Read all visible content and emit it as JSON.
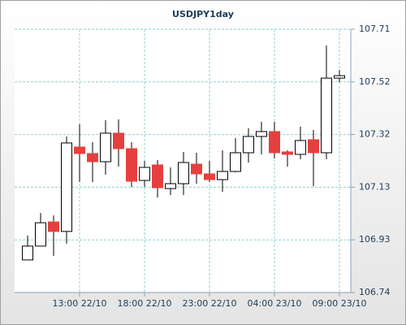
{
  "chart_data": {
    "type": "candlestick",
    "title": "USDJPY1day",
    "categories": [
      null,
      null,
      null,
      null,
      "13:00 22/10",
      null,
      null,
      null,
      null,
      "18:00 22/10",
      null,
      null,
      null,
      null,
      "23:00 22/10",
      null,
      null,
      null,
      null,
      "04:00 23/10",
      null,
      null,
      null,
      null,
      "09:00 23/10"
    ],
    "open": [
      106.86,
      106.911,
      107.0,
      106.965,
      107.276,
      107.252,
      107.222,
      107.327,
      107.27,
      107.153,
      107.21,
      107.123,
      107.141,
      107.213,
      107.177,
      107.156,
      107.186,
      107.255,
      107.315,
      107.333,
      107.258,
      107.249,
      107.303,
      107.255,
      107.53
    ],
    "high": [
      106.95,
      107.033,
      107.024,
      107.315,
      107.36,
      107.294,
      107.375,
      107.378,
      107.294,
      107.225,
      107.228,
      107.201,
      107.258,
      107.255,
      107.225,
      107.264,
      107.309,
      107.345,
      107.369,
      107.369,
      107.264,
      107.351,
      107.339,
      107.65,
      107.56
    ],
    "low": [
      106.86,
      106.911,
      106.875,
      106.92,
      107.147,
      107.147,
      107.174,
      107.204,
      107.129,
      107.129,
      107.09,
      107.099,
      107.099,
      107.141,
      107.147,
      107.111,
      107.183,
      107.219,
      107.249,
      107.234,
      107.204,
      107.231,
      107.132,
      107.231,
      107.515
    ],
    "close": [
      106.911,
      106.997,
      106.965,
      107.291,
      107.252,
      107.222,
      107.327,
      107.27,
      107.15,
      107.201,
      107.126,
      107.141,
      107.219,
      107.177,
      107.156,
      107.186,
      107.255,
      107.315,
      107.333,
      107.255,
      107.249,
      107.3,
      107.255,
      107.53,
      107.539
    ],
    "up_color": "#ffffff",
    "down_color": "#e5403f",
    "ylim": [
      106.74,
      107.71
    ],
    "yticks": [
      106.74,
      {
        "value": 106.934,
        "label": "106.93"
      },
      {
        "value": 107.128,
        "label": "107.13"
      },
      {
        "value": 107.322,
        "label": "107.32"
      },
      {
        "value": 107.516,
        "label": "107.52"
      },
      107.71
    ],
    "grid": true
  }
}
